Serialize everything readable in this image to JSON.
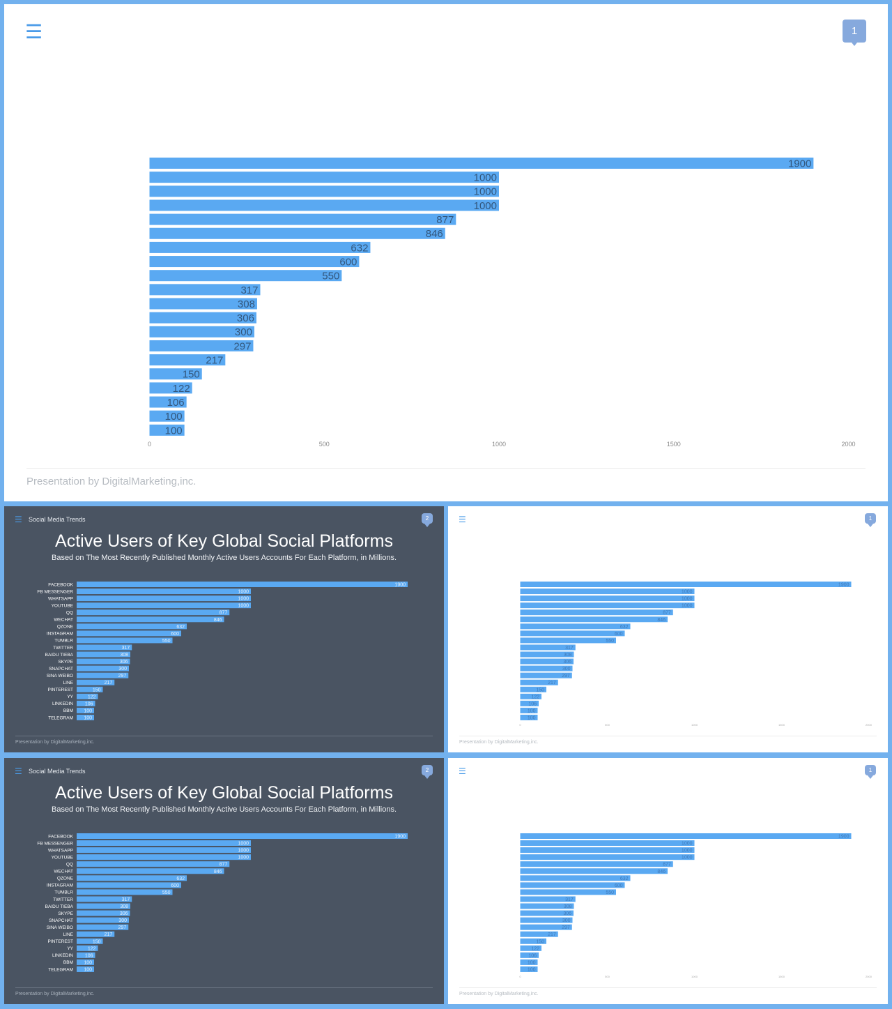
{
  "footer": "Presentation  by DigitalMarketing,inc.",
  "section": "Social Media Trends",
  "title": "Active Users of Key Global Social Platforms",
  "subtitle": "Based on The Most Recently Published Monthly Active Users Accounts For Each Platform, in Millions.",
  "badges": {
    "chart_slide": "1",
    "title_slide": "2"
  },
  "menu_glyph": "☰",
  "colors": {
    "bar": "#5aa9f2",
    "frame": "#72b1ee",
    "dark_bg": "#4a5462",
    "light_bg": "#ffffff"
  },
  "chart_data": {
    "type": "bar",
    "orientation": "horizontal",
    "categories": [
      "FACEBOOK",
      "FB MESSENGER",
      "WHATSAPP",
      "YOUTUBE",
      "QQ",
      "WECHAT",
      "QZONE",
      "INSTAGRAM",
      "TUMBLR",
      "TWITTER",
      "BAIDU TIEBA",
      "SKYPE",
      "SNAPCHAT",
      "SINA WEIBO",
      "LINE",
      "PINTEREST",
      "YY",
      "LINKEDIN",
      "BBM",
      "TELEGRAM"
    ],
    "values": [
      1900,
      1000,
      1000,
      1000,
      877,
      846,
      632,
      600,
      550,
      317,
      308,
      306,
      300,
      297,
      217,
      150,
      122,
      106,
      100,
      100
    ],
    "x_ticks": [
      0,
      500,
      1000,
      1500,
      2000
    ],
    "xlim": [
      0,
      2000
    ],
    "grid": false,
    "legend": "none"
  }
}
